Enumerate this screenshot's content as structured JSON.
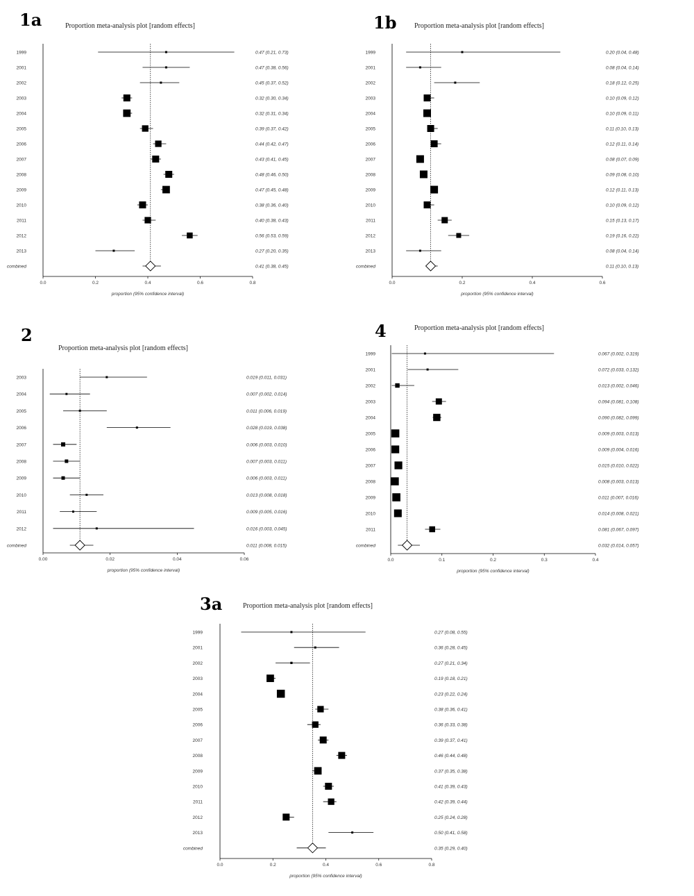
{
  "chart_data": [
    {
      "panel": "1a",
      "type": "forest",
      "title": "Proportion meta-analysis plot [random effects]",
      "xlabel": "proportion (95% confidence interval)",
      "xlim": [
        0,
        0.8
      ],
      "xticks": [
        "0.0",
        "0.2",
        "0.4",
        "0.6",
        "0.8"
      ],
      "pooled": 0.41,
      "rows": [
        {
          "label": "1999",
          "est": 0.47,
          "lo": 0.21,
          "hi": 0.73,
          "ci_text": "0.47 (0.21, 0.73)"
        },
        {
          "label": "2001",
          "est": 0.47,
          "lo": 0.38,
          "hi": 0.56,
          "ci_text": "0.47 (0.38, 0.56)"
        },
        {
          "label": "2002",
          "est": 0.45,
          "lo": 0.37,
          "hi": 0.52,
          "ci_text": "0.45 (0.37, 0.52)"
        },
        {
          "label": "2003",
          "est": 0.32,
          "lo": 0.3,
          "hi": 0.34,
          "ci_text": "0.32 (0.30, 0.34)"
        },
        {
          "label": "2004",
          "est": 0.32,
          "lo": 0.31,
          "hi": 0.34,
          "ci_text": "0.32 (0.31, 0.34)"
        },
        {
          "label": "2005",
          "est": 0.39,
          "lo": 0.37,
          "hi": 0.42,
          "ci_text": "0.39 (0.37, 0.42)"
        },
        {
          "label": "2006",
          "est": 0.44,
          "lo": 0.42,
          "hi": 0.47,
          "ci_text": "0.44 (0.42, 0.47)"
        },
        {
          "label": "2007",
          "est": 0.43,
          "lo": 0.41,
          "hi": 0.45,
          "ci_text": "0.43 (0.41, 0.45)"
        },
        {
          "label": "2008",
          "est": 0.48,
          "lo": 0.46,
          "hi": 0.5,
          "ci_text": "0.48 (0.46, 0.50)"
        },
        {
          "label": "2009",
          "est": 0.47,
          "lo": 0.45,
          "hi": 0.48,
          "ci_text": "0.47 (0.45, 0.48)"
        },
        {
          "label": "2010",
          "est": 0.38,
          "lo": 0.36,
          "hi": 0.4,
          "ci_text": "0.38 (0.36, 0.40)"
        },
        {
          "label": "2011",
          "est": 0.4,
          "lo": 0.38,
          "hi": 0.43,
          "ci_text": "0.40 (0.38, 0.43)"
        },
        {
          "label": "2012",
          "est": 0.56,
          "lo": 0.53,
          "hi": 0.59,
          "ci_text": "0.56 (0.53, 0.59)"
        },
        {
          "label": "2013",
          "est": 0.27,
          "lo": 0.2,
          "hi": 0.35,
          "ci_text": "0.27 (0.20, 0.35)"
        },
        {
          "label": "combined",
          "est": 0.41,
          "lo": 0.38,
          "hi": 0.45,
          "ci_text": "0.41 (0.38, 0.45)",
          "pooled": true
        }
      ]
    },
    {
      "panel": "1b",
      "type": "forest",
      "title": "Proportion meta-analysis plot [random effects]",
      "xlabel": "proportion (95% confidence interval)",
      "xlim": [
        0,
        0.6
      ],
      "xticks": [
        "0.0",
        "0.2",
        "0.4",
        "0.6"
      ],
      "pooled": 0.11,
      "rows": [
        {
          "label": "1999",
          "est": 0.2,
          "lo": 0.04,
          "hi": 0.48,
          "ci_text": "0.20 (0.04, 0.48)"
        },
        {
          "label": "2001",
          "est": 0.08,
          "lo": 0.04,
          "hi": 0.14,
          "ci_text": "0.08 (0.04, 0.14)"
        },
        {
          "label": "2002",
          "est": 0.18,
          "lo": 0.12,
          "hi": 0.25,
          "ci_text": "0.18 (0.12, 0.25)"
        },
        {
          "label": "2003",
          "est": 0.1,
          "lo": 0.09,
          "hi": 0.12,
          "ci_text": "0.10 (0.09, 0.12)"
        },
        {
          "label": "2004",
          "est": 0.1,
          "lo": 0.09,
          "hi": 0.11,
          "ci_text": "0.10 (0.09, 0.11)"
        },
        {
          "label": "2005",
          "est": 0.11,
          "lo": 0.1,
          "hi": 0.13,
          "ci_text": "0.11 (0.10, 0.13)"
        },
        {
          "label": "2006",
          "est": 0.12,
          "lo": 0.11,
          "hi": 0.14,
          "ci_text": "0.12 (0.11, 0.14)"
        },
        {
          "label": "2007",
          "est": 0.08,
          "lo": 0.07,
          "hi": 0.09,
          "ci_text": "0.08 (0.07, 0.09)"
        },
        {
          "label": "2008",
          "est": 0.09,
          "lo": 0.08,
          "hi": 0.1,
          "ci_text": "0.09 (0.08, 0.10)"
        },
        {
          "label": "2009",
          "est": 0.12,
          "lo": 0.11,
          "hi": 0.13,
          "ci_text": "0.12 (0.11, 0.13)"
        },
        {
          "label": "2010",
          "est": 0.1,
          "lo": 0.09,
          "hi": 0.12,
          "ci_text": "0.10 (0.09, 0.12)"
        },
        {
          "label": "2011",
          "est": 0.15,
          "lo": 0.13,
          "hi": 0.17,
          "ci_text": "0.15 (0.13, 0.17)"
        },
        {
          "label": "2012",
          "est": 0.19,
          "lo": 0.16,
          "hi": 0.22,
          "ci_text": "0.19 (0.16, 0.22)"
        },
        {
          "label": "2013",
          "est": 0.08,
          "lo": 0.04,
          "hi": 0.14,
          "ci_text": "0.08 (0.04, 0.14)"
        },
        {
          "label": "combined",
          "est": 0.11,
          "lo": 0.1,
          "hi": 0.13,
          "ci_text": "0.11 (0.10, 0.13)",
          "pooled": true
        }
      ]
    },
    {
      "panel": "2",
      "type": "forest",
      "title": "Proportion meta-analysis plot [random effects]",
      "xlabel": "proportion (95% confidence interval)",
      "xlim": [
        0,
        0.06
      ],
      "xticks": [
        "0.00",
        "0.02",
        "0.04",
        "0.06"
      ],
      "pooled": 0.011,
      "rows": [
        {
          "label": "2003",
          "est": 0.019,
          "lo": 0.011,
          "hi": 0.031,
          "ci_text": "0.019 (0.011, 0.031)"
        },
        {
          "label": "2004",
          "est": 0.007,
          "lo": 0.002,
          "hi": 0.014,
          "ci_text": "0.007 (0.002, 0.014)"
        },
        {
          "label": "2005",
          "est": 0.011,
          "lo": 0.006,
          "hi": 0.019,
          "ci_text": "0.011 (0.006, 0.019)"
        },
        {
          "label": "2006",
          "est": 0.028,
          "lo": 0.019,
          "hi": 0.038,
          "ci_text": "0.028 (0.019, 0.038)"
        },
        {
          "label": "2007",
          "est": 0.006,
          "lo": 0.003,
          "hi": 0.01,
          "ci_text": "0.006 (0.003, 0.010)"
        },
        {
          "label": "2008",
          "est": 0.007,
          "lo": 0.003,
          "hi": 0.011,
          "ci_text": "0.007 (0.003, 0.011)"
        },
        {
          "label": "2009",
          "est": 0.006,
          "lo": 0.003,
          "hi": 0.011,
          "ci_text": "0.006 (0.003, 0.011)"
        },
        {
          "label": "2010",
          "est": 0.013,
          "lo": 0.008,
          "hi": 0.018,
          "ci_text": "0.013 (0.008, 0.018)"
        },
        {
          "label": "2011",
          "est": 0.009,
          "lo": 0.005,
          "hi": 0.016,
          "ci_text": "0.009 (0.005, 0.016)"
        },
        {
          "label": "2012",
          "est": 0.016,
          "lo": 0.003,
          "hi": 0.045,
          "ci_text": "0.016 (0.003, 0.045)"
        },
        {
          "label": "combined",
          "est": 0.011,
          "lo": 0.008,
          "hi": 0.015,
          "ci_text": "0.011 (0.008, 0.015)",
          "pooled": true
        }
      ]
    },
    {
      "panel": "4",
      "type": "forest",
      "title": "Proportion meta-analysis plot [random effects]",
      "xlabel": "proportion (95% confidence interval)",
      "xlim": [
        0,
        0.4
      ],
      "xticks": [
        "0.0",
        "0.1",
        "0.2",
        "0.3",
        "0.4"
      ],
      "pooled": 0.032,
      "rows": [
        {
          "label": "1999",
          "est": 0.067,
          "lo": 0.002,
          "hi": 0.319,
          "ci_text": "0.067 (0.002, 0.319)"
        },
        {
          "label": "2001",
          "est": 0.072,
          "lo": 0.033,
          "hi": 0.132,
          "ci_text": "0.072 (0.033, 0.132)"
        },
        {
          "label": "2002",
          "est": 0.013,
          "lo": 0.002,
          "hi": 0.046,
          "ci_text": "0.013 (0.002, 0.046)"
        },
        {
          "label": "2003",
          "est": 0.094,
          "lo": 0.081,
          "hi": 0.108,
          "ci_text": "0.094 (0.081, 0.108)"
        },
        {
          "label": "2004",
          "est": 0.09,
          "lo": 0.082,
          "hi": 0.099,
          "ci_text": "0.090 (0.082, 0.099)"
        },
        {
          "label": "2005",
          "est": 0.009,
          "lo": 0.003,
          "hi": 0.013,
          "ci_text": "0.009 (0.003, 0.013)"
        },
        {
          "label": "2006",
          "est": 0.009,
          "lo": 0.004,
          "hi": 0.016,
          "ci_text": "0.009 (0.004, 0.016)"
        },
        {
          "label": "2007",
          "est": 0.015,
          "lo": 0.01,
          "hi": 0.022,
          "ci_text": "0.015 (0.010, 0.022)"
        },
        {
          "label": "2008",
          "est": 0.008,
          "lo": 0.003,
          "hi": 0.013,
          "ci_text": "0.008 (0.003, 0.013)"
        },
        {
          "label": "2009",
          "est": 0.011,
          "lo": 0.007,
          "hi": 0.016,
          "ci_text": "0.011 (0.007, 0.016)"
        },
        {
          "label": "2010",
          "est": 0.014,
          "lo": 0.008,
          "hi": 0.021,
          "ci_text": "0.014 (0.008, 0.021)"
        },
        {
          "label": "2011",
          "est": 0.081,
          "lo": 0.067,
          "hi": 0.097,
          "ci_text": "0.081 (0.067, 0.097)"
        },
        {
          "label": "combined",
          "est": 0.032,
          "lo": 0.014,
          "hi": 0.057,
          "ci_text": "0.032 (0.014, 0.057)",
          "pooled": true
        }
      ]
    },
    {
      "panel": "3a",
      "type": "forest",
      "title": "Proportion meta-analysis plot [random effects]",
      "xlabel": "proportion (95% confidence interval)",
      "xlim": [
        0,
        0.8
      ],
      "xticks": [
        "0.0",
        "0.2",
        "0.4",
        "0.6",
        "0.8"
      ],
      "pooled": 0.35,
      "rows": [
        {
          "label": "1999",
          "est": 0.27,
          "lo": 0.08,
          "hi": 0.55,
          "ci_text": "0.27 (0.08, 0.55)"
        },
        {
          "label": "2001",
          "est": 0.36,
          "lo": 0.28,
          "hi": 0.45,
          "ci_text": "0.36 (0.28, 0.45)"
        },
        {
          "label": "2002",
          "est": 0.27,
          "lo": 0.21,
          "hi": 0.34,
          "ci_text": "0.27 (0.21, 0.34)"
        },
        {
          "label": "2003",
          "est": 0.19,
          "lo": 0.18,
          "hi": 0.21,
          "ci_text": "0.19 (0.18, 0.21)"
        },
        {
          "label": "2004",
          "est": 0.23,
          "lo": 0.22,
          "hi": 0.24,
          "ci_text": "0.23 (0.22, 0.24)"
        },
        {
          "label": "2005",
          "est": 0.38,
          "lo": 0.36,
          "hi": 0.41,
          "ci_text": "0.38 (0.36, 0.41)"
        },
        {
          "label": "2006",
          "est": 0.36,
          "lo": 0.33,
          "hi": 0.38,
          "ci_text": "0.36 (0.33, 0.38)"
        },
        {
          "label": "2007",
          "est": 0.39,
          "lo": 0.37,
          "hi": 0.41,
          "ci_text": "0.39 (0.37, 0.41)"
        },
        {
          "label": "2008",
          "est": 0.46,
          "lo": 0.44,
          "hi": 0.48,
          "ci_text": "0.46 (0.44, 0.48)"
        },
        {
          "label": "2009",
          "est": 0.37,
          "lo": 0.35,
          "hi": 0.38,
          "ci_text": "0.37 (0.35, 0.38)"
        },
        {
          "label": "2010",
          "est": 0.41,
          "lo": 0.39,
          "hi": 0.43,
          "ci_text": "0.41 (0.39, 0.43)"
        },
        {
          "label": "2011",
          "est": 0.42,
          "lo": 0.39,
          "hi": 0.44,
          "ci_text": "0.42 (0.39, 0.44)"
        },
        {
          "label": "2012",
          "est": 0.25,
          "lo": 0.24,
          "hi": 0.28,
          "ci_text": "0.25 (0.24, 0.28)"
        },
        {
          "label": "2013",
          "est": 0.5,
          "lo": 0.41,
          "hi": 0.58,
          "ci_text": "0.50 (0.41, 0.58)"
        },
        {
          "label": "combined",
          "est": 0.35,
          "lo": 0.29,
          "hi": 0.4,
          "ci_text": "0.35 (0.29, 0.40)",
          "pooled": true
        }
      ]
    }
  ]
}
